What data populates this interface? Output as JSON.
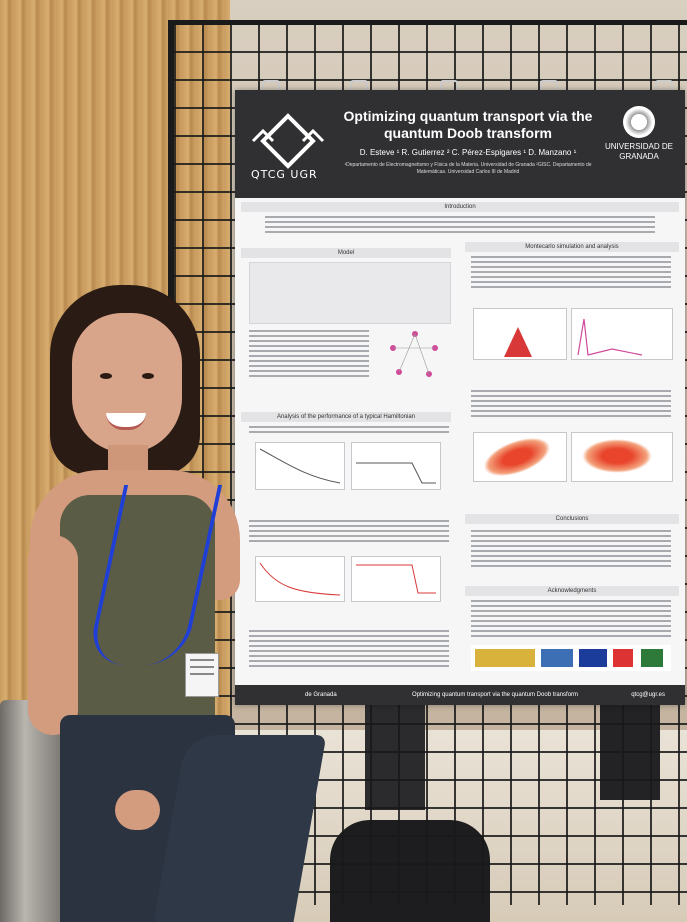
{
  "poster": {
    "logo_left": "QTCG UGR",
    "title": "Optimizing quantum transport via the quantum Doob transform",
    "authors": "D. Esteve ¹   R. Gutierrez ²   C. Pérez-Espigares ¹   D. Manzano ¹",
    "affiliation": "¹Departamento de Electromagnetismo y Física de la Materia. Universidad de Granada ²GISC. Departamento de Matemáticas. Universidad Carlos III de Madrid",
    "logo_right": "UNIVERSIDAD DE GRANADA",
    "sections": {
      "introduction": "Introduction",
      "model": "Model",
      "montecarlo": "Montecarlo simulation and analysis",
      "analysis": "Analysis of the performance of a typical Hamiltonian",
      "conclusions": "Conclusions",
      "acknowledgments": "Acknowledgments"
    },
    "footer_left": "de Granada",
    "footer_center": "Optimizing quantum transport via the quantum Doob transform",
    "footer_right": "qtcg@ugr.es"
  },
  "colors": {
    "poster_header": "#303033",
    "lanyard": "#1f3fd6",
    "plot_red": "#d83838"
  }
}
